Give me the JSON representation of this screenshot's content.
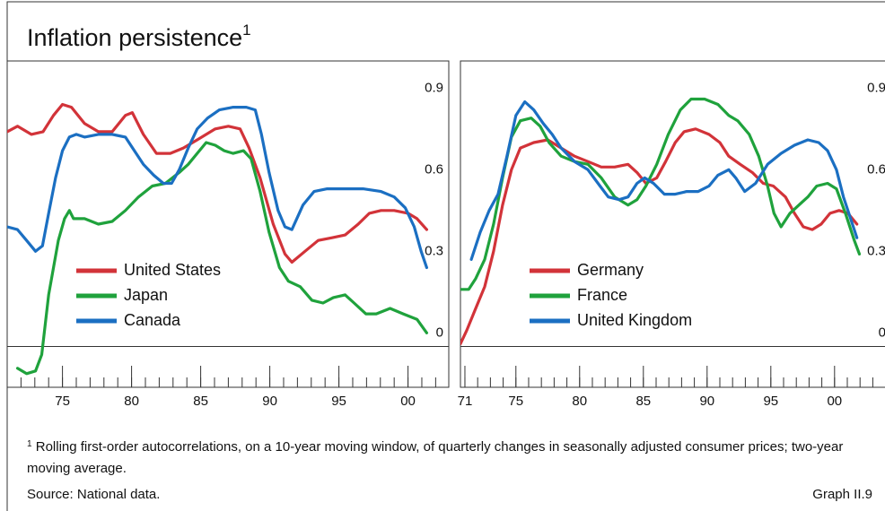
{
  "title": "Inflation persistence",
  "title_note": "1",
  "footnote": {
    "marker": "1",
    "text": "Rolling first-order autocorrelations, on a 10-year moving window, of quarterly changes in seasonally adjusted consumer prices; two-year moving average."
  },
  "source": "Source: National data.",
  "graph_label": "Graph II.9",
  "chart_data": [
    {
      "type": "line",
      "xlim": [
        1971,
        2002.95
      ],
      "ylim": [
        -0.15,
        1.05
      ],
      "yticks": [
        0,
        0.3,
        0.6,
        0.9
      ],
      "grid": false,
      "legend": "center left",
      "xticks": [
        {
          "value": 1975,
          "label": "75"
        },
        {
          "value": 1980,
          "label": "80"
        },
        {
          "value": 1985,
          "label": "85"
        },
        {
          "value": 1990,
          "label": "90"
        },
        {
          "value": 1995,
          "label": "95"
        },
        {
          "value": 2000,
          "label": "00"
        }
      ],
      "series": [
        {
          "name": "United States",
          "color": "#d23339",
          "x": [
            1971.0,
            1971.75,
            1972.75,
            1973.6,
            1974.35,
            1975.0,
            1975.65,
            1976.6,
            1977.6,
            1978.6,
            1979.55,
            1980.05,
            1980.85,
            1981.8,
            1982.8,
            1983.75,
            1984.75,
            1986.05,
            1987.0,
            1987.85,
            1988.5,
            1989.3,
            1990.25,
            1991.1,
            1991.6,
            1992.55,
            1993.5,
            1994.5,
            1995.45,
            1996.4,
            1997.2,
            1998.05,
            1999.0,
            2000.0,
            2000.65,
            2001.35
          ],
          "values": [
            0.79,
            0.81,
            0.78,
            0.79,
            0.85,
            0.89,
            0.88,
            0.82,
            0.79,
            0.79,
            0.85,
            0.86,
            0.78,
            0.71,
            0.71,
            0.73,
            0.76,
            0.8,
            0.81,
            0.8,
            0.73,
            0.62,
            0.45,
            0.34,
            0.31,
            0.35,
            0.39,
            0.4,
            0.41,
            0.45,
            0.49,
            0.5,
            0.5,
            0.49,
            0.47,
            0.43
          ]
        },
        {
          "name": "Japan",
          "color": "#1fa23c",
          "x": [
            1971.75,
            1972.4,
            1973.05,
            1973.5,
            1974.0,
            1974.7,
            1975.15,
            1975.5,
            1975.8,
            1976.6,
            1977.6,
            1978.6,
            1979.55,
            1980.5,
            1981.5,
            1982.45,
            1983.45,
            1984.1,
            1984.75,
            1985.4,
            1986.05,
            1986.7,
            1987.35,
            1988.1,
            1988.65,
            1989.3,
            1989.95,
            1990.7,
            1991.35,
            1992.2,
            1993.05,
            1993.85,
            1994.6,
            1995.45,
            1996.1,
            1996.95,
            1997.7,
            1998.7,
            1999.65,
            2000.65,
            2001.35
          ],
          "values": [
            -0.08,
            -0.1,
            -0.09,
            -0.03,
            0.19,
            0.39,
            0.47,
            0.5,
            0.47,
            0.47,
            0.45,
            0.46,
            0.5,
            0.55,
            0.59,
            0.6,
            0.64,
            0.67,
            0.71,
            0.75,
            0.74,
            0.72,
            0.71,
            0.72,
            0.69,
            0.57,
            0.42,
            0.29,
            0.24,
            0.22,
            0.17,
            0.16,
            0.18,
            0.19,
            0.16,
            0.12,
            0.12,
            0.14,
            0.12,
            0.1,
            0.05
          ]
        },
        {
          "name": "Canada",
          "color": "#1b6fc2",
          "x": [
            1971.0,
            1971.75,
            1972.4,
            1973.05,
            1973.55,
            1974.0,
            1974.5,
            1975.0,
            1975.5,
            1976.0,
            1976.6,
            1977.6,
            1978.6,
            1979.55,
            1980.2,
            1980.85,
            1981.6,
            1982.3,
            1982.9,
            1983.45,
            1984.1,
            1984.75,
            1985.5,
            1986.35,
            1987.35,
            1988.3,
            1988.95,
            1989.4,
            1989.95,
            1990.6,
            1991.1,
            1991.6,
            1992.4,
            1993.2,
            1994.15,
            1995.45,
            1996.75,
            1998.05,
            1999.0,
            1999.8,
            2000.45,
            2000.95,
            2001.35
          ],
          "values": [
            0.44,
            0.43,
            0.39,
            0.35,
            0.37,
            0.49,
            0.62,
            0.72,
            0.77,
            0.78,
            0.77,
            0.78,
            0.78,
            0.77,
            0.72,
            0.67,
            0.63,
            0.6,
            0.6,
            0.65,
            0.73,
            0.8,
            0.84,
            0.87,
            0.88,
            0.88,
            0.87,
            0.78,
            0.64,
            0.5,
            0.44,
            0.43,
            0.52,
            0.57,
            0.58,
            0.58,
            0.58,
            0.57,
            0.55,
            0.51,
            0.44,
            0.35,
            0.29
          ]
        }
      ]
    },
    {
      "type": "line",
      "xlim": [
        1970.65,
        2004.45
      ],
      "ylim": [
        -0.15,
        1.05
      ],
      "yticks": [
        0,
        0.3,
        0.6,
        0.9
      ],
      "grid": false,
      "legend": "center left",
      "xticks": [
        {
          "value": 1971,
          "label": "71"
        },
        {
          "value": 1975,
          "label": "75"
        },
        {
          "value": 1980,
          "label": "80"
        },
        {
          "value": 1985,
          "label": "85"
        },
        {
          "value": 1990,
          "label": "90"
        },
        {
          "value": 1995,
          "label": "95"
        },
        {
          "value": 2000,
          "label": "00"
        }
      ],
      "series": [
        {
          "name": "Germany",
          "color": "#d23339",
          "x": [
            1970.65,
            1971.15,
            1971.85,
            1972.55,
            1973.25,
            1973.95,
            1974.65,
            1975.35,
            1976.4,
            1977.5,
            1978.55,
            1979.6,
            1980.65,
            1981.7,
            1982.75,
            1983.8,
            1984.5,
            1985.2,
            1986.05,
            1986.75,
            1987.5,
            1988.2,
            1989.1,
            1990.15,
            1991.0,
            1991.7,
            1992.6,
            1993.55,
            1994.4,
            1995.2,
            1996.15,
            1996.85,
            1997.55,
            1998.25,
            1998.95,
            1999.65,
            2000.35,
            2001.05,
            2001.75
          ],
          "values": [
            0.01,
            0.06,
            0.14,
            0.22,
            0.35,
            0.52,
            0.65,
            0.73,
            0.75,
            0.76,
            0.73,
            0.7,
            0.68,
            0.66,
            0.66,
            0.67,
            0.64,
            0.6,
            0.62,
            0.68,
            0.75,
            0.79,
            0.8,
            0.78,
            0.75,
            0.7,
            0.67,
            0.64,
            0.6,
            0.59,
            0.55,
            0.49,
            0.44,
            0.43,
            0.45,
            0.49,
            0.5,
            0.49,
            0.45
          ]
        },
        {
          "name": "France",
          "color": "#1fa23c",
          "x": [
            1970.65,
            1971.3,
            1971.85,
            1972.55,
            1973.25,
            1973.95,
            1974.65,
            1975.35,
            1976.2,
            1976.9,
            1977.6,
            1978.55,
            1979.6,
            1980.65,
            1981.7,
            1982.75,
            1983.8,
            1984.5,
            1985.2,
            1986.05,
            1986.95,
            1987.9,
            1988.75,
            1989.8,
            1990.85,
            1991.7,
            1992.4,
            1993.3,
            1994.05,
            1994.75,
            1995.25,
            1995.8,
            1996.5,
            1997.2,
            1997.9,
            1998.6,
            1999.45,
            2000.15,
            2000.85,
            2001.55,
            2001.95
          ],
          "values": [
            0.21,
            0.21,
            0.25,
            0.32,
            0.45,
            0.62,
            0.77,
            0.83,
            0.84,
            0.81,
            0.75,
            0.7,
            0.68,
            0.67,
            0.62,
            0.55,
            0.52,
            0.54,
            0.59,
            0.67,
            0.78,
            0.87,
            0.91,
            0.91,
            0.89,
            0.85,
            0.83,
            0.78,
            0.7,
            0.59,
            0.49,
            0.44,
            0.49,
            0.52,
            0.55,
            0.59,
            0.6,
            0.58,
            0.49,
            0.39,
            0.34
          ]
        },
        {
          "name": "United Kingdom",
          "color": "#1b6fc2",
          "x": [
            1971.5,
            1972.2,
            1972.9,
            1973.6,
            1974.3,
            1975.0,
            1975.7,
            1976.4,
            1977.15,
            1977.85,
            1978.55,
            1979.6,
            1980.65,
            1981.6,
            1982.25,
            1983.1,
            1983.8,
            1984.5,
            1985.1,
            1985.8,
            1986.65,
            1987.5,
            1988.4,
            1989.3,
            1990.15,
            1990.85,
            1991.7,
            1992.25,
            1992.95,
            1993.8,
            1994.75,
            1995.8,
            1996.85,
            1997.9,
            1998.75,
            1999.45,
            2000.15,
            2000.7,
            2001.4,
            2001.75
          ],
          "values": [
            0.32,
            0.42,
            0.5,
            0.56,
            0.7,
            0.85,
            0.9,
            0.87,
            0.82,
            0.78,
            0.73,
            0.68,
            0.65,
            0.59,
            0.55,
            0.54,
            0.55,
            0.6,
            0.62,
            0.6,
            0.56,
            0.56,
            0.57,
            0.57,
            0.59,
            0.63,
            0.65,
            0.62,
            0.57,
            0.6,
            0.67,
            0.71,
            0.74,
            0.76,
            0.75,
            0.72,
            0.65,
            0.55,
            0.45,
            0.4
          ]
        }
      ]
    }
  ]
}
